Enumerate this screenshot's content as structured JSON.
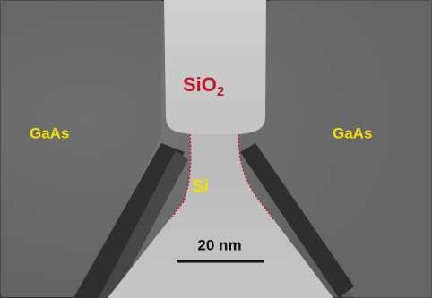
{
  "labels": {
    "sio2": {
      "base": "SiO",
      "subscript": "2"
    },
    "gaas_left": "GaAs",
    "gaas_right": "GaAs",
    "si": "Si",
    "scale_bar": "20 nm"
  }
}
